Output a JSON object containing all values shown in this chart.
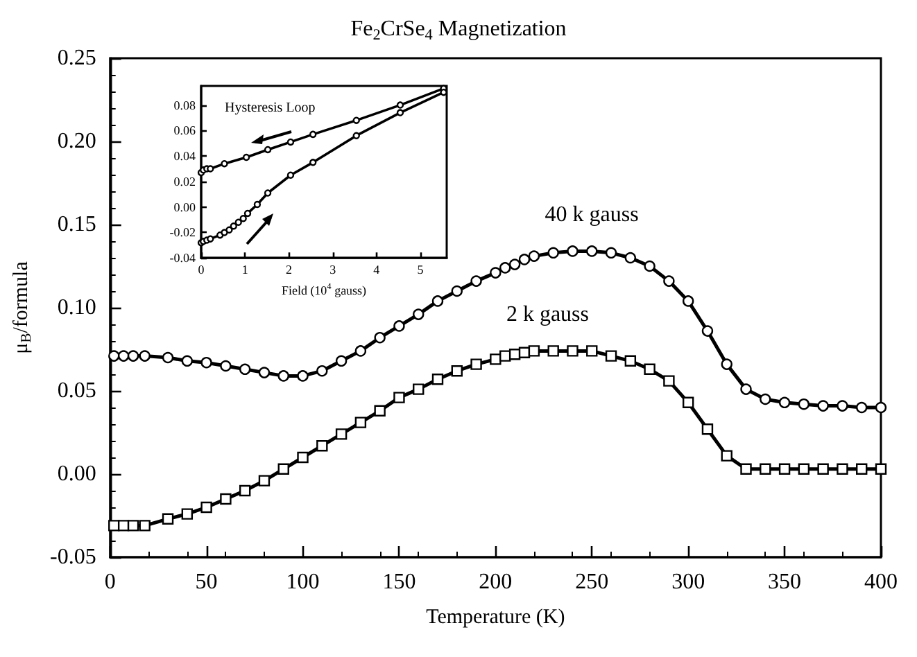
{
  "chart_data": [
    {
      "type": "line",
      "title": "Fe$_{2}$CrSe$_{4}$ Magnetization",
      "xlabel": "Temperature (K)",
      "ylabel": "μ$_{B}$/formula",
      "x": [
        2,
        7,
        12,
        18,
        30,
        40,
        50,
        60,
        70,
        80,
        90,
        100,
        110,
        120,
        130,
        140,
        150,
        160,
        170,
        180,
        190,
        200,
        205,
        210,
        215,
        220,
        230,
        240,
        250,
        260,
        270,
        280,
        290,
        300,
        310,
        320,
        330,
        340,
        350,
        360,
        370,
        380,
        390,
        400
      ],
      "series": [
        {
          "name": "40 k gauss",
          "color": "#000000",
          "marker": "circle",
          "values": [
            0.071,
            0.071,
            0.071,
            0.071,
            0.07,
            0.068,
            0.067,
            0.065,
            0.063,
            0.061,
            0.059,
            0.059,
            0.062,
            0.068,
            0.074,
            0.082,
            0.089,
            0.096,
            0.104,
            0.11,
            0.116,
            0.121,
            0.124,
            0.126,
            0.129,
            0.131,
            0.133,
            0.134,
            0.134,
            0.133,
            0.13,
            0.125,
            0.116,
            0.104,
            0.086,
            0.066,
            0.051,
            0.045,
            0.043,
            0.042,
            0.041,
            0.041,
            0.04,
            0.04
          ]
        },
        {
          "name": "2 k gauss",
          "color": "#000000",
          "marker": "square",
          "values": [
            -0.031,
            -0.031,
            -0.031,
            -0.031,
            -0.027,
            -0.024,
            -0.02,
            -0.015,
            -0.01,
            -0.004,
            0.003,
            0.01,
            0.017,
            0.024,
            0.031,
            0.038,
            0.046,
            0.051,
            0.057,
            0.062,
            0.066,
            0.069,
            0.071,
            0.072,
            0.073,
            0.074,
            0.074,
            0.074,
            0.074,
            0.071,
            0.068,
            0.063,
            0.056,
            0.043,
            0.027,
            0.011,
            0.003,
            0.003,
            0.003,
            0.003,
            0.003,
            0.003,
            0.003,
            0.003
          ]
        }
      ],
      "xlim": [
        0,
        400
      ],
      "xticks": [
        0,
        50,
        100,
        150,
        200,
        250,
        300,
        350,
        400
      ],
      "ylim": [
        -0.05,
        0.25
      ],
      "yticks": [
        {
          "value": -0.05,
          "label": "-0.05"
        },
        {
          "value": 0,
          "label": "0.00"
        },
        {
          "value": 0.05,
          "label": "0.05"
        },
        {
          "value": 0.1,
          "label": "0.10"
        },
        {
          "value": 0.15,
          "label": "0.15"
        },
        {
          "value": 0.2,
          "label": "0.20"
        },
        {
          "value": 0.25,
          "label": "0.25"
        }
      ],
      "grid": false,
      "legend": false,
      "line_style": "solid"
    },
    {
      "type": "line",
      "title": "Hysteresis Loop",
      "xlabel": "Field (10$^{4}$ gauss)",
      "marker": "circle",
      "line_style": "solid",
      "grid": false,
      "legend": false,
      "series": [
        {
          "color": "#000000",
          "x": [
            0,
            0.05,
            0.13,
            0.21,
            0.53,
            1.03,
            1.52,
            2.04,
            2.55,
            3.54,
            4.54,
            5.53
          ],
          "values": [
            0.027,
            0.029,
            0.03,
            0.03,
            0.034,
            0.039,
            0.045,
            0.051,
            0.057,
            0.068,
            0.08,
            0.093
          ]
        },
        {
          "color": "#000000",
          "x": [
            0,
            0.05,
            0.13,
            0.21,
            0.43,
            0.53,
            0.64,
            0.74,
            0.85,
            0.96,
            1.06,
            1.28,
            1.52,
            2.04,
            2.55,
            3.54,
            4.54,
            5.53
          ],
          "values": [
            -0.028,
            -0.027,
            -0.026,
            -0.025,
            -0.022,
            -0.02,
            -0.018,
            -0.015,
            -0.012,
            -0.009,
            -0.005,
            0.002,
            0.011,
            0.025,
            0.035,
            0.056,
            0.074,
            0.09
          ]
        }
      ],
      "xlim": [
        0,
        5.6
      ],
      "xticks": [
        0,
        1,
        2,
        3,
        4,
        5
      ],
      "ylim": [
        -0.04,
        0.095
      ],
      "yticks": [
        {
          "value": -0.04,
          "label": "-0.04"
        },
        {
          "value": -0.02,
          "label": "-0.02"
        },
        {
          "value": 0,
          "label": "0.00"
        },
        {
          "value": 0.02,
          "label": "0.02"
        },
        {
          "value": 0.04,
          "label": "0.04"
        },
        {
          "value": 0.06,
          "label": "0.06"
        },
        {
          "value": 0.08,
          "label": "0.08"
        }
      ]
    }
  ]
}
